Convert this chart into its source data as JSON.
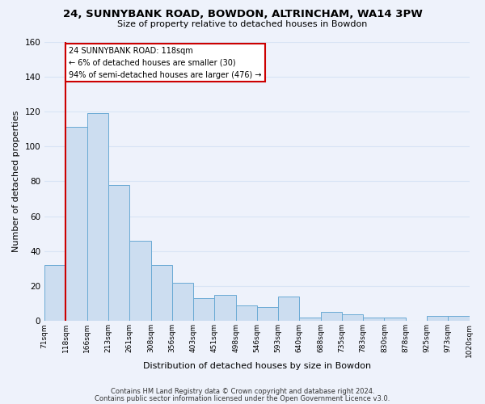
{
  "title": "24, SUNNYBANK ROAD, BOWDON, ALTRINCHAM, WA14 3PW",
  "subtitle": "Size of property relative to detached houses in Bowdon",
  "xlabel": "Distribution of detached houses by size in Bowdon",
  "ylabel": "Number of detached properties",
  "bin_labels": [
    "71sqm",
    "118sqm",
    "166sqm",
    "213sqm",
    "261sqm",
    "308sqm",
    "356sqm",
    "403sqm",
    "451sqm",
    "498sqm",
    "546sqm",
    "593sqm",
    "640sqm",
    "688sqm",
    "735sqm",
    "783sqm",
    "830sqm",
    "878sqm",
    "925sqm",
    "973sqm",
    "1020sqm"
  ],
  "bar_heights": [
    32,
    111,
    119,
    78,
    46,
    32,
    22,
    13,
    15,
    9,
    8,
    14,
    2,
    5,
    4,
    2,
    2,
    0,
    3,
    3
  ],
  "bar_color": "#ccddf0",
  "bar_edge_color": "#6aaad4",
  "ylim": [
    0,
    160
  ],
  "yticks": [
    0,
    20,
    40,
    60,
    80,
    100,
    120,
    140,
    160
  ],
  "vline_color": "#cc0000",
  "annotation_title": "24 SUNNYBANK ROAD: 118sqm",
  "annotation_line1": "← 6% of detached houses are smaller (30)",
  "annotation_line2": "94% of semi-detached houses are larger (476) →",
  "annotation_box_color": "#ffffff",
  "annotation_box_edge": "#cc0000",
  "footnote1": "Contains HM Land Registry data © Crown copyright and database right 2024.",
  "footnote2": "Contains public sector information licensed under the Open Government Licence v3.0.",
  "background_color": "#eef2fb",
  "grid_color": "#d8e4f5",
  "title_fontsize": 9.5,
  "subtitle_fontsize": 8
}
